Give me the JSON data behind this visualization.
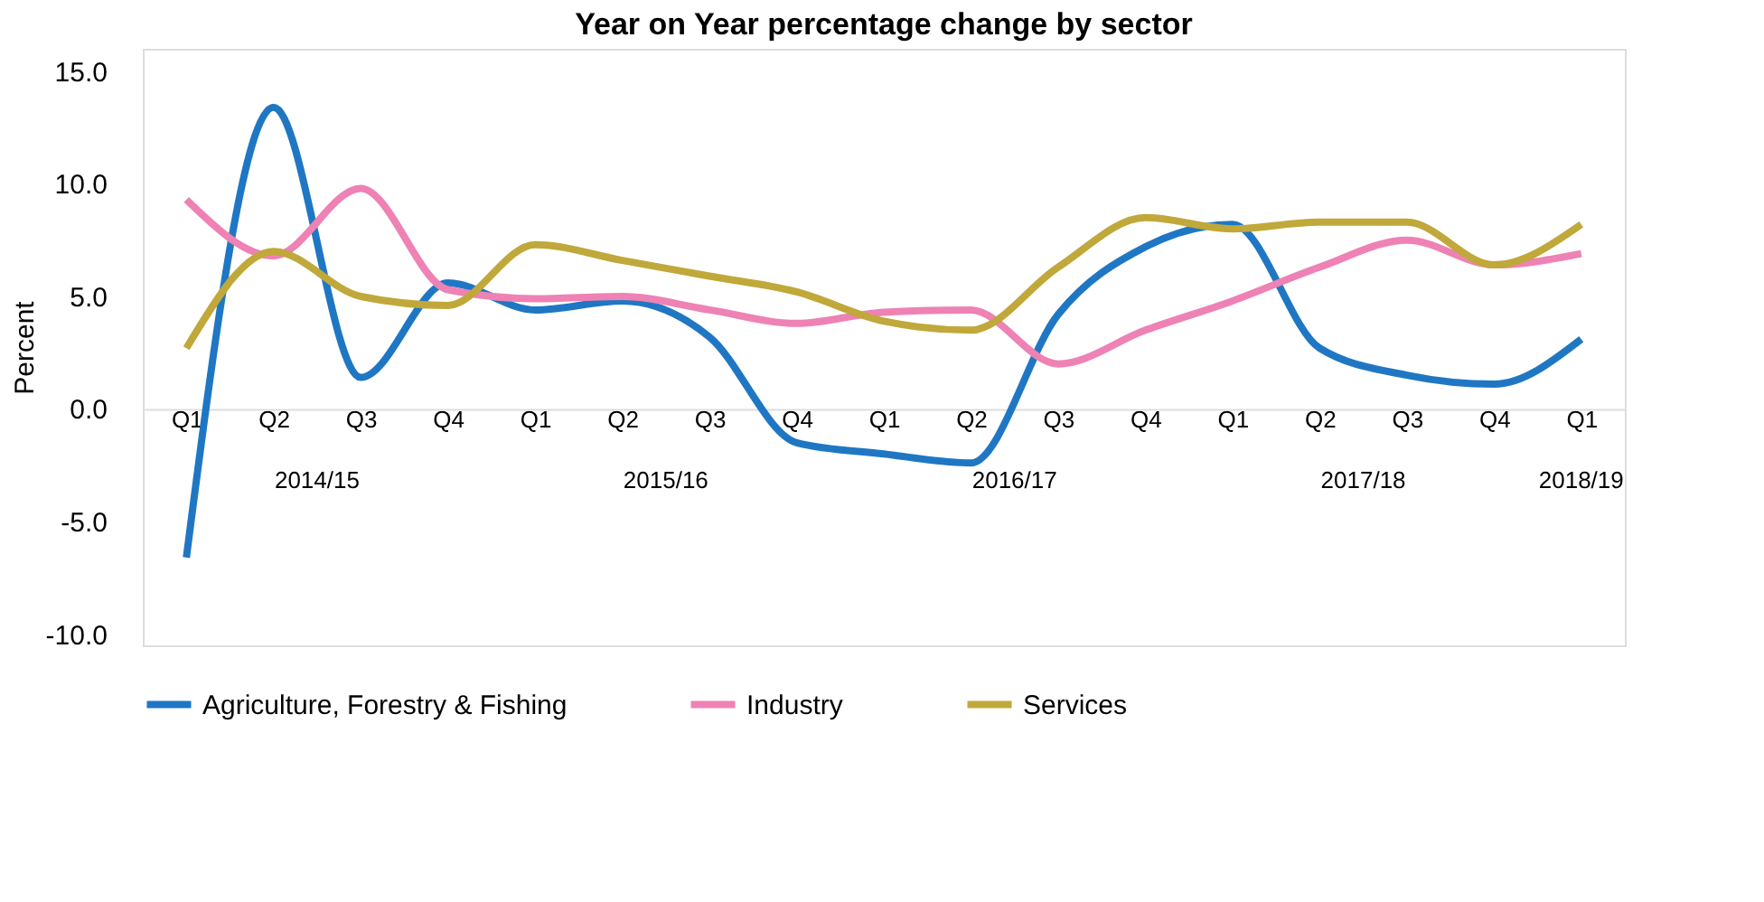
{
  "chart_data": {
    "type": "line",
    "title": "Year on Year percentage change by sector",
    "ylabel": "Percent",
    "categories": [
      "Q1",
      "Q2",
      "Q3",
      "Q4",
      "Q1",
      "Q2",
      "Q3",
      "Q4",
      "Q1",
      "Q2",
      "Q3",
      "Q4",
      "Q1",
      "Q2",
      "Q3",
      "Q4",
      "Q1"
    ],
    "annotations": [
      "2014/15",
      "2015/16",
      "2016/17",
      "2017/18",
      "2018/19"
    ],
    "series": [
      {
        "name": "Agriculture, Forestry & Fishing",
        "color": "#1f77c4",
        "values": [
          -6.6,
          13.4,
          1.4,
          5.6,
          4.4,
          4.8,
          3.2,
          -1.5,
          -2.0,
          -2.4,
          4.2,
          7.2,
          8.2,
          2.7,
          1.5,
          1.1,
          3.1
        ]
      },
      {
        "name": "Industry",
        "color": "#ee82b4",
        "values": [
          9.3,
          6.8,
          9.8,
          5.3,
          4.9,
          5.0,
          4.4,
          3.8,
          4.3,
          4.4,
          2.0,
          3.5,
          4.8,
          6.3,
          7.5,
          6.4,
          6.9
        ]
      },
      {
        "name": "Services",
        "color": "#c0a83a",
        "values": [
          2.7,
          7.0,
          5.0,
          4.6,
          7.3,
          6.6,
          5.9,
          5.2,
          3.9,
          3.5,
          6.3,
          8.5,
          8.0,
          8.3,
          8.3,
          6.4,
          8.2
        ]
      }
    ],
    "ylim": [
      -10.5,
      16.0
    ],
    "yticks": [
      {
        "value": -10,
        "label": "-10.0"
      },
      {
        "value": -5,
        "label": "-5.0"
      },
      {
        "value": 0,
        "label": "0.0"
      },
      {
        "value": 5,
        "label": "5.0"
      },
      {
        "value": 10,
        "label": "10.0"
      },
      {
        "value": 15,
        "label": "15.0"
      }
    ],
    "legend": "bottom",
    "grid": false,
    "marker": "none",
    "line_style": "solid"
  }
}
